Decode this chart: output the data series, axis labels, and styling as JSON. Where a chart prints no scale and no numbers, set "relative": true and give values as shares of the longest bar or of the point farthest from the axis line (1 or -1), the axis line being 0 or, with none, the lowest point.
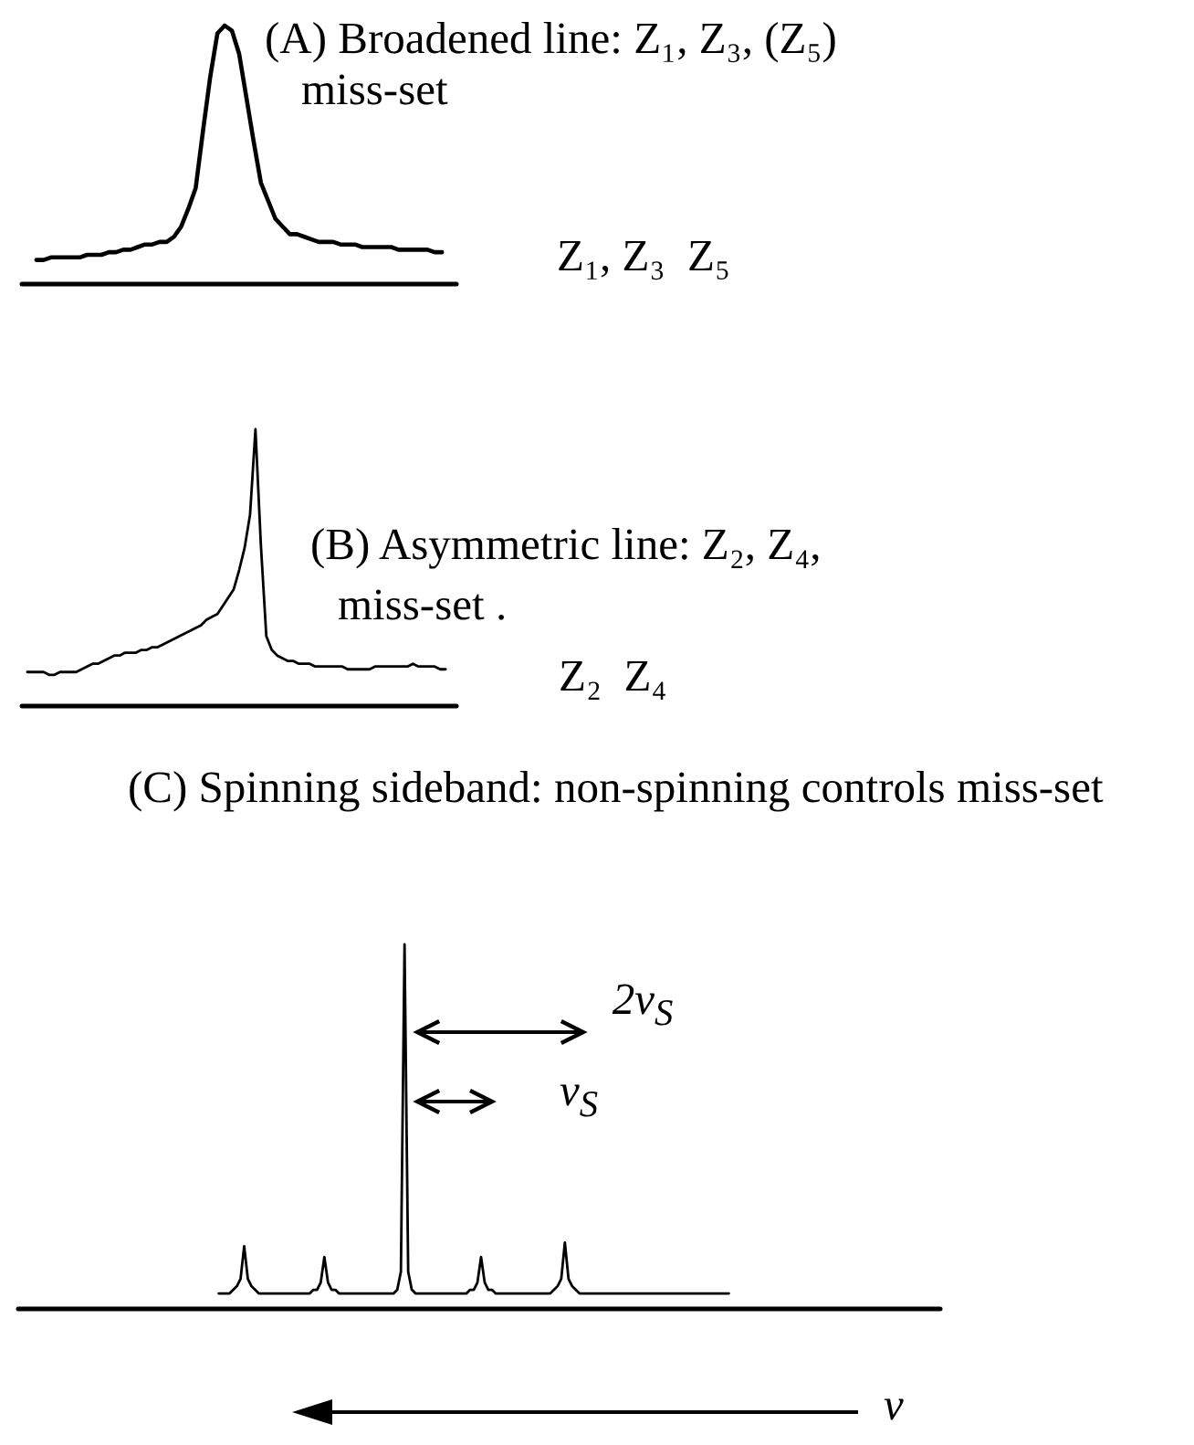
{
  "chart_data": [
    {
      "type": "line",
      "title": "(A) Broadened line: Z₁, Z₃, (Z₅) miss-set",
      "annotations": [
        "Z₁, Z₃  Z₅"
      ],
      "relative": true,
      "color": "#000000",
      "categories": [
        null,
        null,
        null,
        null,
        null,
        null,
        null,
        null,
        null,
        null,
        null,
        null,
        null,
        null,
        null,
        null,
        null,
        null,
        null,
        null,
        null,
        null,
        null,
        null,
        null,
        null,
        null,
        null,
        null,
        null,
        null,
        null,
        null,
        null,
        null,
        null,
        null,
        null,
        null,
        null,
        null,
        null,
        null,
        null,
        null,
        null,
        null,
        null,
        null,
        null,
        null,
        null,
        null,
        null,
        null,
        null,
        null
      ],
      "values": [
        0.09,
        0.09,
        0.1,
        0.1,
        0.1,
        0.1,
        0.1,
        0.11,
        0.11,
        0.11,
        0.12,
        0.12,
        0.13,
        0.13,
        0.14,
        0.15,
        0.15,
        0.16,
        0.16,
        0.18,
        0.22,
        0.29,
        0.37,
        0.59,
        0.8,
        0.97,
        1,
        0.98,
        0.89,
        0.72,
        0.55,
        0.39,
        0.32,
        0.25,
        0.22,
        0.19,
        0.19,
        0.18,
        0.17,
        0.16,
        0.16,
        0.16,
        0.15,
        0.15,
        0.15,
        0.14,
        0.14,
        0.14,
        0.14,
        0.14,
        0.13,
        0.13,
        0.13,
        0.13,
        0.13,
        0.12,
        0.12
      ]
    },
    {
      "type": "line",
      "title": "(B) Asymmetric line: Z₂, Z₄, miss-set .",
      "annotations": [
        "Z₂  Z₄"
      ],
      "relative": true,
      "color": "#000000",
      "categories": [
        null,
        null,
        null,
        null,
        null,
        null,
        null,
        null,
        null,
        null,
        null,
        null,
        null,
        null,
        null,
        null,
        null,
        null,
        null,
        null,
        null,
        null,
        null,
        null,
        null,
        null,
        null,
        null,
        null,
        null,
        null,
        null,
        null,
        null,
        null,
        null,
        null,
        null,
        null,
        null,
        null,
        null,
        null,
        null,
        null,
        null,
        null,
        null,
        null,
        null,
        null,
        null,
        null,
        null,
        null,
        null,
        null,
        null,
        null,
        null,
        null,
        null,
        null,
        null,
        null,
        null,
        null,
        null,
        null,
        null,
        null,
        null,
        null,
        null,
        null,
        null,
        null,
        null
      ],
      "values": [
        0.12,
        0.12,
        0.12,
        0.12,
        0.11,
        0.11,
        0.12,
        0.12,
        0.12,
        0.12,
        0.13,
        0.14,
        0.15,
        0.15,
        0.16,
        0.17,
        0.18,
        0.18,
        0.19,
        0.19,
        0.19,
        0.2,
        0.2,
        0.21,
        0.21,
        0.22,
        0.23,
        0.24,
        0.25,
        0.26,
        0.27,
        0.28,
        0.29,
        0.31,
        0.32,
        0.33,
        0.36,
        0.39,
        0.42,
        0.49,
        0.57,
        0.69,
        1,
        0.58,
        0.25,
        0.2,
        0.18,
        0.17,
        0.16,
        0.16,
        0.15,
        0.15,
        0.15,
        0.14,
        0.14,
        0.14,
        0.14,
        0.14,
        0.14,
        0.13,
        0.13,
        0.13,
        0.13,
        0.13,
        0.14,
        0.14,
        0.14,
        0.14,
        0.14,
        0.14,
        0.14,
        0.15,
        0.14,
        0.14,
        0.14,
        0.14,
        0.13,
        0.13
      ]
    },
    {
      "type": "line",
      "title": "(C) Spinning sideband: non-spinning controls miss-set",
      "xlabel": "ν",
      "annotations": [
        "2ν$_{S}$",
        "ν$_{S}$"
      ],
      "relative": true,
      "color": "#000000",
      "categories": [
        null,
        null,
        null,
        null,
        null,
        null,
        null,
        null,
        null,
        null,
        null,
        null,
        null,
        null,
        null,
        null,
        null,
        null,
        null,
        null,
        null,
        null,
        null,
        null,
        null,
        null,
        null,
        null,
        null,
        null,
        null,
        null,
        null,
        null,
        null,
        null,
        null,
        null,
        null,
        null,
        null,
        null,
        null,
        null,
        null,
        null,
        null,
        null,
        null,
        null,
        null,
        null,
        null,
        null,
        null,
        null,
        null,
        null,
        null,
        null,
        null,
        null,
        null,
        null,
        null,
        null,
        null,
        null,
        null,
        null,
        null,
        null,
        null,
        null,
        null,
        null,
        null,
        null,
        null,
        null,
        null,
        null,
        null,
        null,
        null,
        null,
        null,
        null,
        null,
        null,
        null,
        null,
        null,
        null,
        null,
        null,
        null,
        null,
        null,
        null,
        null,
        null,
        null,
        null,
        null,
        null,
        null,
        null,
        null,
        null,
        null,
        null,
        null,
        null,
        null,
        null,
        null,
        null,
        null,
        null,
        null,
        null,
        null,
        null,
        null,
        null,
        null,
        null,
        null,
        null,
        null,
        null,
        null,
        null,
        null,
        null,
        null,
        null,
        null,
        null,
        null
      ],
      "values": [
        0.04,
        0.04,
        0.04,
        0.04,
        0.05,
        0.06,
        0.08,
        0.17,
        0.08,
        0.06,
        0.05,
        0.04,
        0.04,
        0.04,
        0.04,
        0.04,
        0.04,
        0.04,
        0.04,
        0.04,
        0.04,
        0.04,
        0.04,
        0.04,
        0.04,
        0.04,
        0.05,
        0.05,
        0.07,
        0.14,
        0.07,
        0.05,
        0.05,
        0.04,
        0.04,
        0.04,
        0.04,
        0.04,
        0.04,
        0.04,
        0.04,
        0.04,
        0.04,
        0.04,
        0.04,
        0.04,
        0.04,
        0.04,
        0.04,
        0.05,
        0.1,
        1,
        0.1,
        0.05,
        0.04,
        0.04,
        0.04,
        0.04,
        0.04,
        0.04,
        0.04,
        0.04,
        0.04,
        0.04,
        0.04,
        0.04,
        0.04,
        0.04,
        0.04,
        0.05,
        0.05,
        0.07,
        0.14,
        0.07,
        0.05,
        0.05,
        0.04,
        0.04,
        0.04,
        0.04,
        0.04,
        0.04,
        0.04,
        0.04,
        0.04,
        0.04,
        0.04,
        0.04,
        0.04,
        0.04,
        0.04,
        0.04,
        0.05,
        0.06,
        0.08,
        0.18,
        0.08,
        0.06,
        0.05,
        0.04,
        0.04,
        0.04,
        0.04,
        0.04,
        0.04,
        0.04,
        0.04,
        0.04,
        0.04,
        0.04,
        0.04,
        0.04,
        0.04,
        0.04,
        0.04,
        0.04,
        0.04,
        0.04,
        0.04,
        0.04,
        0.04,
        0.04,
        0.04,
        0.04,
        0.04,
        0.04,
        0.04,
        0.04,
        0.04,
        0.04,
        0.04,
        0.04,
        0.04,
        0.04,
        0.04,
        0.04,
        0.04,
        0.04,
        0.04,
        0.04,
        0.04
      ]
    }
  ]
}
